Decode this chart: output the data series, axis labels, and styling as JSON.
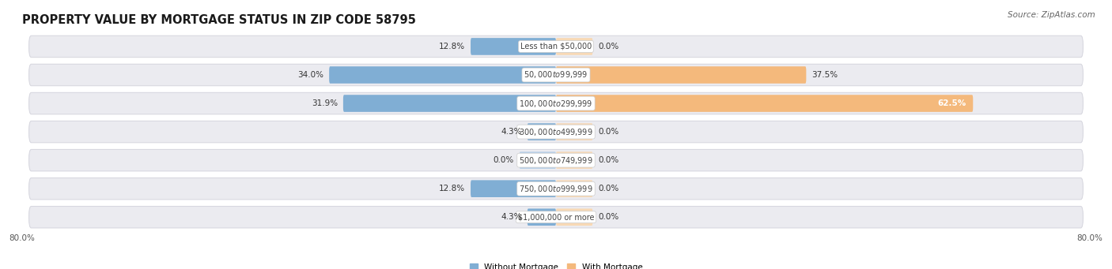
{
  "title": "PROPERTY VALUE BY MORTGAGE STATUS IN ZIP CODE 58795",
  "source": "Source: ZipAtlas.com",
  "categories": [
    "Less than $50,000",
    "$50,000 to $99,999",
    "$100,000 to $299,999",
    "$300,000 to $499,999",
    "$500,000 to $749,999",
    "$750,000 to $999,999",
    "$1,000,000 or more"
  ],
  "without_mortgage": [
    12.8,
    34.0,
    31.9,
    4.3,
    0.0,
    12.8,
    4.3
  ],
  "with_mortgage": [
    0.0,
    37.5,
    62.5,
    0.0,
    0.0,
    0.0,
    0.0
  ],
  "blue_color": "#80aed4",
  "blue_light": "#b8d0e8",
  "orange_color": "#f4b97c",
  "orange_light": "#f8d9b5",
  "row_bg_color": "#ebebf0",
  "row_border_color": "#d8d8e0",
  "x_min": -80.0,
  "x_max": 80.0,
  "stub_size": 5.5,
  "title_fontsize": 10.5,
  "cat_fontsize": 7.0,
  "pct_fontsize": 7.5,
  "tick_fontsize": 7.5,
  "source_fontsize": 7.5
}
